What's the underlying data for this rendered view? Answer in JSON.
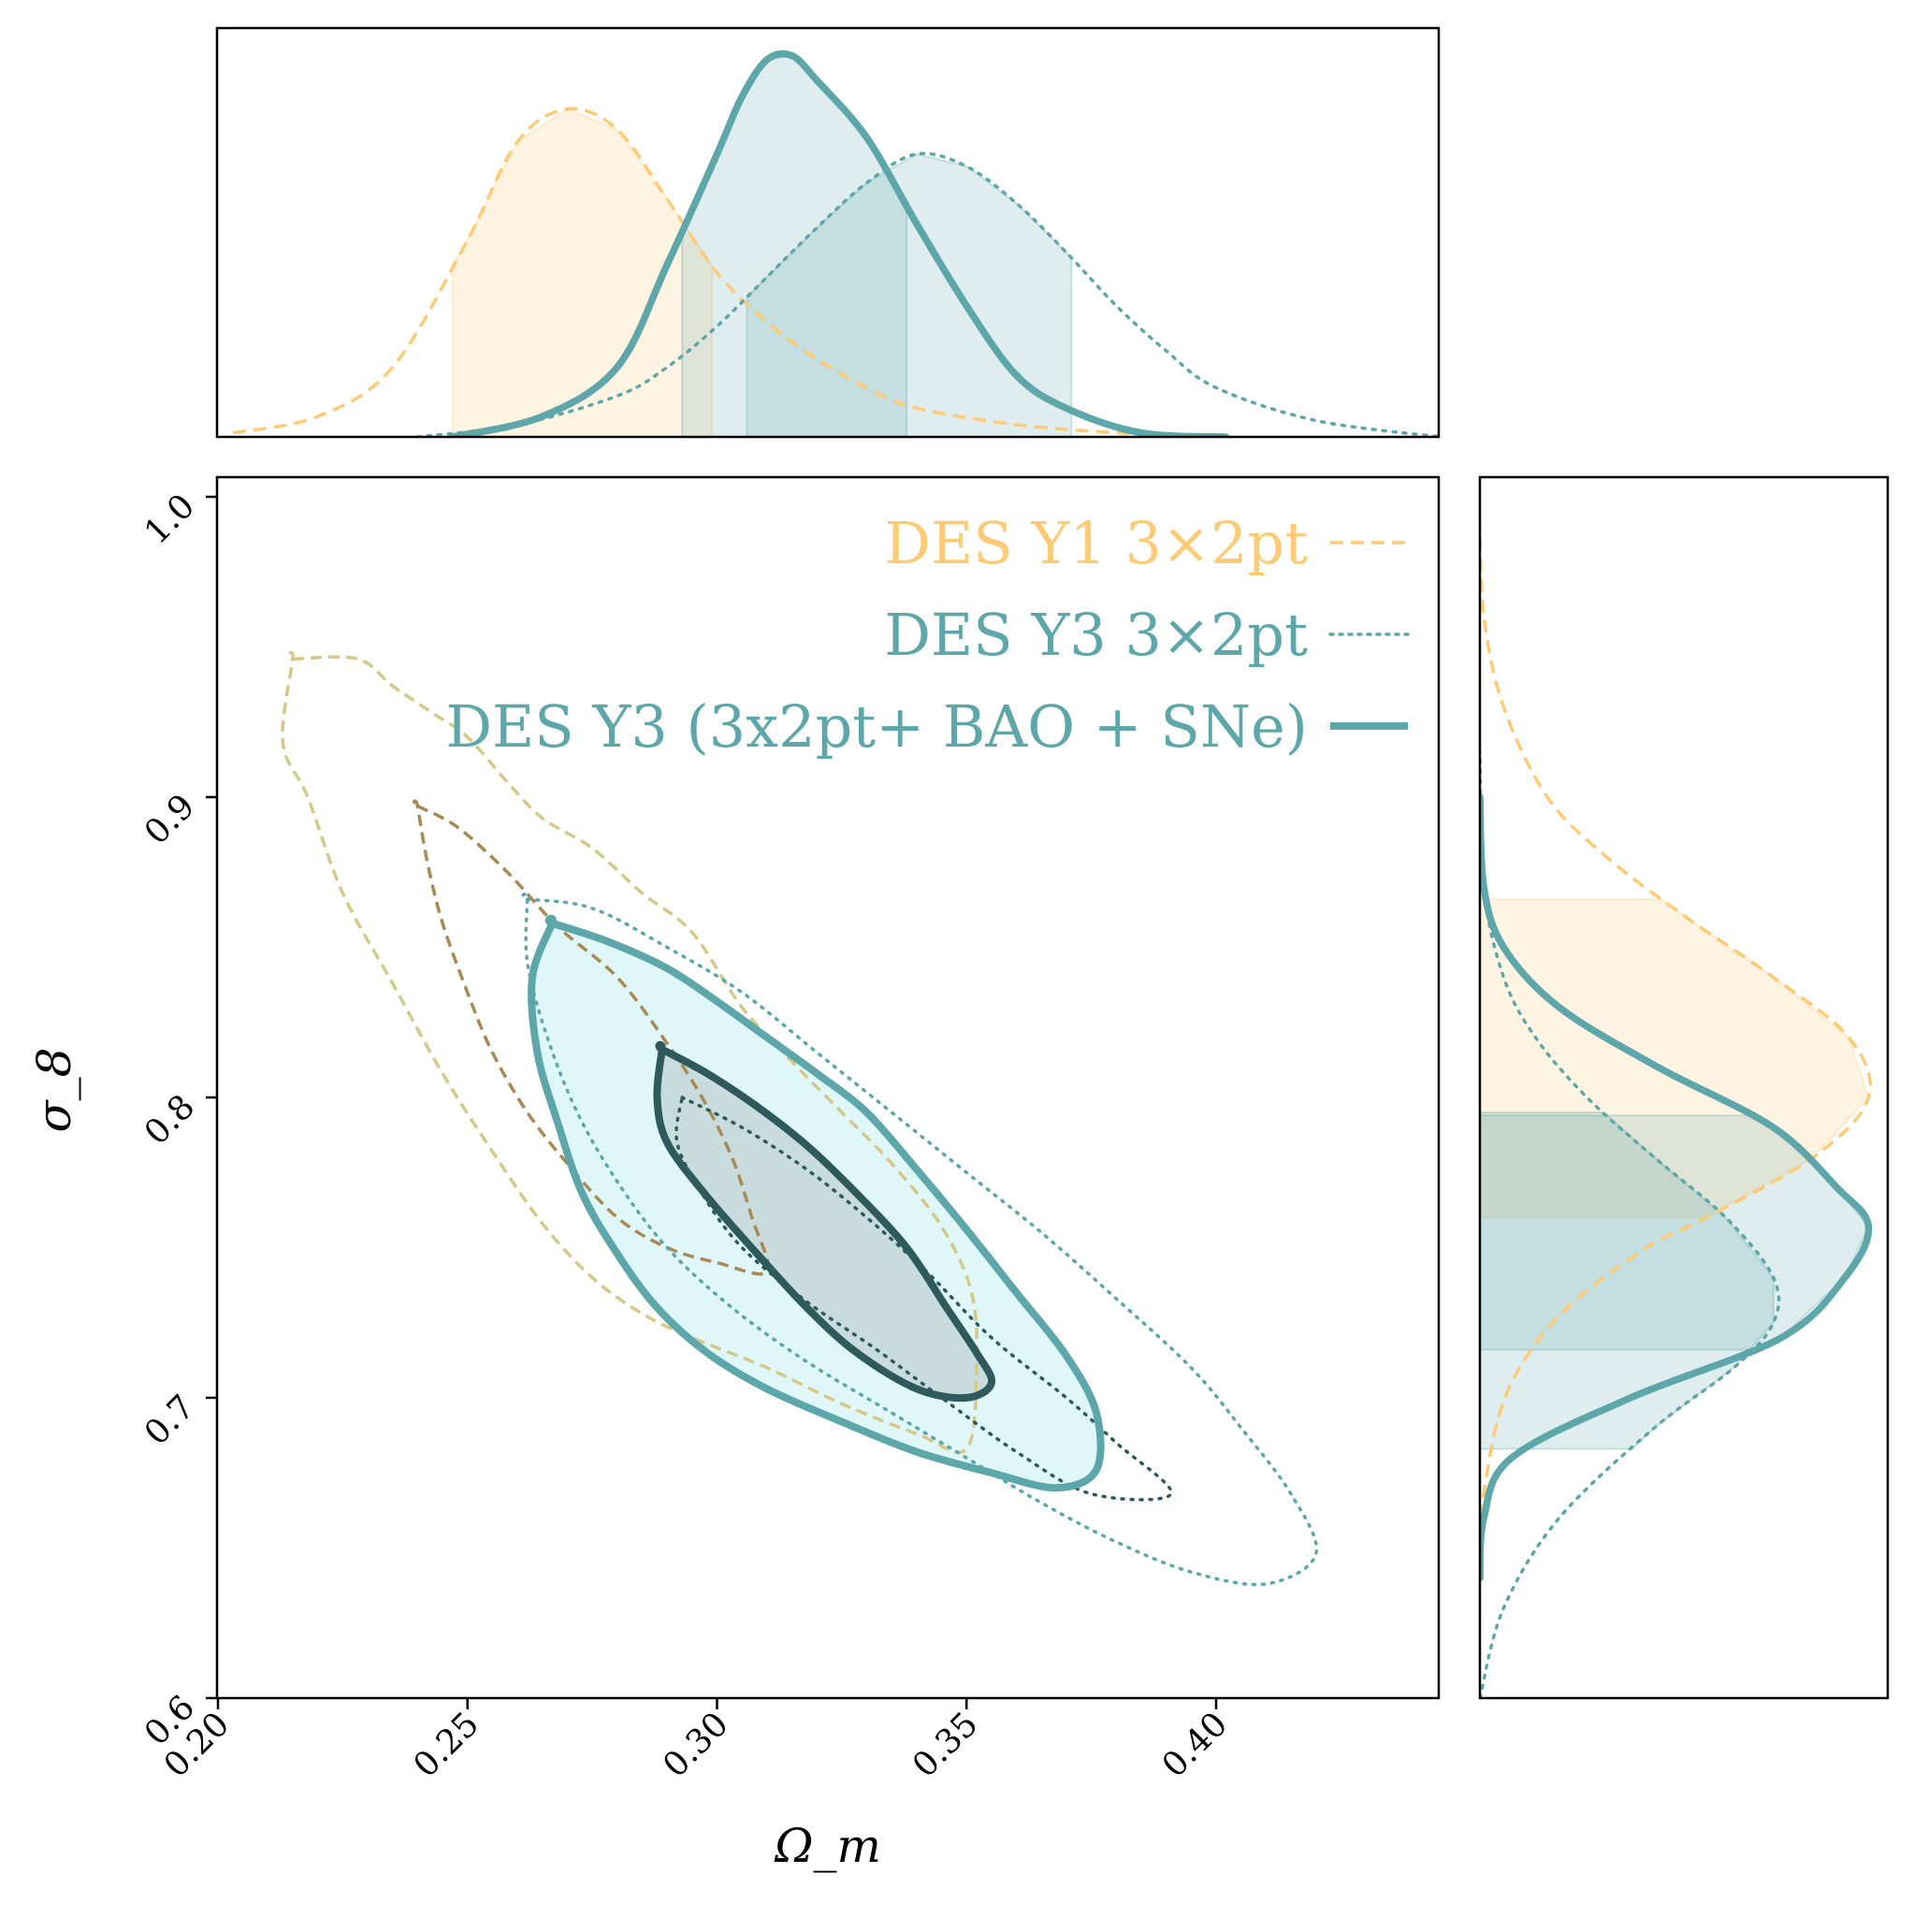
{
  "colors": {
    "y1": "#fdcb76",
    "y1_outer": "#d4c988",
    "y1_inner": "#a88a55",
    "y3": "#5da6aa",
    "y3_dark": "#2f5a5c",
    "combined_fill_outer": "#e0f7f9",
    "combined_fill_inner": "#c9dcdd"
  },
  "chart_data": {
    "type": "corner-plot (posterior contours + marginals)",
    "xlabel": "Ω_m",
    "ylabel": "σ_8",
    "xlim": [
      0.2,
      0.445
    ],
    "ylim": [
      0.6,
      1.007
    ],
    "x_ticks": [
      "0.20",
      "0.25",
      "0.30",
      "0.35",
      "0.40"
    ],
    "y_ticks": [
      "0.6",
      "0.7",
      "0.8",
      "0.9",
      "1.0"
    ],
    "legend_placement": "upper-right",
    "series": [
      {
        "name": "DES Y1 3×2pt",
        "line_style": "dashed",
        "color": "#fdcb76",
        "om_marginal": {
          "mode": 0.27,
          "interval68": [
            0.247,
            0.299
          ],
          "points": [
            [
              0.203,
              0.01
            ],
            [
              0.22,
              0.05
            ],
            [
              0.235,
              0.17
            ],
            [
              0.25,
              0.48
            ],
            [
              0.26,
              0.72
            ],
            [
              0.27,
              0.8
            ],
            [
              0.28,
              0.75
            ],
            [
              0.29,
              0.58
            ],
            [
              0.3,
              0.4
            ],
            [
              0.31,
              0.28
            ],
            [
              0.32,
              0.19
            ],
            [
              0.33,
              0.12
            ],
            [
              0.34,
              0.07
            ],
            [
              0.36,
              0.03
            ],
            [
              0.38,
              0.01
            ],
            [
              0.4,
              0.0
            ]
          ]
        },
        "s8_marginal": {
          "mode": 0.8,
          "interval68": [
            0.76,
            0.866
          ],
          "points": [
            [
              0.66,
              0.0
            ],
            [
              0.69,
              0.04
            ],
            [
              0.71,
              0.1
            ],
            [
              0.73,
              0.22
            ],
            [
              0.75,
              0.42
            ],
            [
              0.76,
              0.57
            ],
            [
              0.78,
              0.84
            ],
            [
              0.8,
              0.98
            ],
            [
              0.82,
              0.93
            ],
            [
              0.84,
              0.74
            ],
            [
              0.86,
              0.52
            ],
            [
              0.88,
              0.32
            ],
            [
              0.9,
              0.17
            ],
            [
              0.93,
              0.06
            ],
            [
              0.96,
              0.01
            ],
            [
              0.99,
              0.0
            ]
          ]
        },
        "contour95": [
          [
            0.215,
            0.946
          ],
          [
            0.228,
            0.946
          ],
          [
            0.235,
            0.937
          ],
          [
            0.243,
            0.928
          ],
          [
            0.25,
            0.92
          ],
          [
            0.258,
            0.905
          ],
          [
            0.265,
            0.893
          ],
          [
            0.275,
            0.883
          ],
          [
            0.285,
            0.868
          ],
          [
            0.295,
            0.855
          ],
          [
            0.305,
            0.83
          ],
          [
            0.315,
            0.812
          ],
          [
            0.325,
            0.795
          ],
          [
            0.335,
            0.778
          ],
          [
            0.345,
            0.757
          ],
          [
            0.351,
            0.735
          ],
          [
            0.352,
            0.71
          ],
          [
            0.35,
            0.683
          ],
          [
            0.34,
            0.688
          ],
          [
            0.325,
            0.698
          ],
          [
            0.31,
            0.71
          ],
          [
            0.295,
            0.72
          ],
          [
            0.285,
            0.728
          ],
          [
            0.275,
            0.74
          ],
          [
            0.265,
            0.758
          ],
          [
            0.255,
            0.782
          ],
          [
            0.245,
            0.808
          ],
          [
            0.235,
            0.838
          ],
          [
            0.225,
            0.868
          ],
          [
            0.218,
            0.9
          ],
          [
            0.213,
            0.918
          ],
          [
            0.215,
            0.946
          ]
        ],
        "contour68": [
          [
            0.24,
            0.897
          ],
          [
            0.248,
            0.89
          ],
          [
            0.258,
            0.875
          ],
          [
            0.268,
            0.857
          ],
          [
            0.28,
            0.84
          ],
          [
            0.29,
            0.818
          ],
          [
            0.297,
            0.8
          ],
          [
            0.303,
            0.78
          ],
          [
            0.307,
            0.76
          ],
          [
            0.31,
            0.742
          ],
          [
            0.3,
            0.745
          ],
          [
            0.29,
            0.75
          ],
          [
            0.28,
            0.76
          ],
          [
            0.27,
            0.778
          ],
          [
            0.262,
            0.795
          ],
          [
            0.255,
            0.815
          ],
          [
            0.25,
            0.835
          ],
          [
            0.245,
            0.858
          ],
          [
            0.242,
            0.878
          ],
          [
            0.24,
            0.897
          ]
        ]
      },
      {
        "name": "DES Y3 3×2pt",
        "line_style": "dotted",
        "color": "#5da6aa",
        "om_marginal": {
          "mode": 0.339,
          "interval68": [
            0.306,
            0.371
          ],
          "points": [
            [
              0.24,
              0.0
            ],
            [
              0.26,
              0.03
            ],
            [
              0.28,
              0.1
            ],
            [
              0.29,
              0.17
            ],
            [
              0.3,
              0.27
            ],
            [
              0.31,
              0.39
            ],
            [
              0.32,
              0.51
            ],
            [
              0.33,
              0.62
            ],
            [
              0.34,
              0.69
            ],
            [
              0.35,
              0.66
            ],
            [
              0.36,
              0.57
            ],
            [
              0.37,
              0.45
            ],
            [
              0.38,
              0.32
            ],
            [
              0.39,
              0.21
            ],
            [
              0.4,
              0.12
            ],
            [
              0.42,
              0.04
            ],
            [
              0.445,
              0.0
            ]
          ]
        },
        "s8_marginal": {
          "mode": 0.735,
          "interval68": [
            0.683,
            0.795
          ],
          "points": [
            [
              0.6,
              0.0
            ],
            [
              0.63,
              0.06
            ],
            [
              0.66,
              0.2
            ],
            [
              0.69,
              0.44
            ],
            [
              0.71,
              0.64
            ],
            [
              0.725,
              0.74
            ],
            [
              0.74,
              0.74
            ],
            [
              0.76,
              0.62
            ],
            [
              0.78,
              0.44
            ],
            [
              0.8,
              0.27
            ],
            [
              0.82,
              0.14
            ],
            [
              0.84,
              0.06
            ],
            [
              0.87,
              0.01
            ],
            [
              0.915,
              0.0
            ]
          ]
        },
        "contour95": [
          [
            0.262,
            0.866
          ],
          [
            0.275,
            0.863
          ],
          [
            0.29,
            0.85
          ],
          [
            0.305,
            0.835
          ],
          [
            0.32,
            0.815
          ],
          [
            0.335,
            0.795
          ],
          [
            0.35,
            0.775
          ],
          [
            0.365,
            0.755
          ],
          [
            0.38,
            0.733
          ],
          [
            0.395,
            0.71
          ],
          [
            0.405,
            0.69
          ],
          [
            0.415,
            0.668
          ],
          [
            0.42,
            0.648
          ],
          [
            0.41,
            0.638
          ],
          [
            0.395,
            0.642
          ],
          [
            0.38,
            0.652
          ],
          [
            0.365,
            0.665
          ],
          [
            0.35,
            0.68
          ],
          [
            0.335,
            0.695
          ],
          [
            0.318,
            0.712
          ],
          [
            0.303,
            0.73
          ],
          [
            0.29,
            0.75
          ],
          [
            0.28,
            0.772
          ],
          [
            0.272,
            0.795
          ],
          [
            0.266,
            0.82
          ],
          [
            0.262,
            0.845
          ],
          [
            0.262,
            0.866
          ]
        ],
        "contour68": [
          [
            0.293,
            0.8
          ],
          [
            0.305,
            0.79
          ],
          [
            0.318,
            0.776
          ],
          [
            0.33,
            0.76
          ],
          [
            0.342,
            0.742
          ],
          [
            0.355,
            0.72
          ],
          [
            0.37,
            0.7
          ],
          [
            0.38,
            0.685
          ],
          [
            0.391,
            0.668
          ],
          [
            0.375,
            0.668
          ],
          [
            0.36,
            0.682
          ],
          [
            0.345,
            0.7
          ],
          [
            0.332,
            0.716
          ],
          [
            0.318,
            0.732
          ],
          [
            0.305,
            0.75
          ],
          [
            0.297,
            0.768
          ],
          [
            0.292,
            0.785
          ],
          [
            0.293,
            0.8
          ]
        ]
      },
      {
        "name": "DES Y3 (3x2pt+ BAO + SNe)",
        "line_style": "solid",
        "color": "#5da6aa",
        "om_marginal": {
          "mode": 0.313,
          "interval68": [
            0.293,
            0.338
          ],
          "points": [
            [
              0.247,
              0.0
            ],
            [
              0.265,
              0.05
            ],
            [
              0.28,
              0.17
            ],
            [
              0.29,
              0.42
            ],
            [
              0.3,
              0.69
            ],
            [
              0.305,
              0.83
            ],
            [
              0.31,
              0.92
            ],
            [
              0.315,
              0.93
            ],
            [
              0.32,
              0.87
            ],
            [
              0.33,
              0.73
            ],
            [
              0.34,
              0.52
            ],
            [
              0.35,
              0.32
            ],
            [
              0.36,
              0.15
            ],
            [
              0.37,
              0.07
            ],
            [
              0.385,
              0.01
            ],
            [
              0.402,
              0.0
            ]
          ]
        },
        "s8_marginal": {
          "mode": 0.757,
          "interval68": [
            0.716,
            0.794
          ],
          "points": [
            [
              0.64,
              0.0
            ],
            [
              0.66,
              0.01
            ],
            [
              0.68,
              0.08
            ],
            [
              0.7,
              0.38
            ],
            [
              0.72,
              0.76
            ],
            [
              0.74,
              0.92
            ],
            [
              0.757,
              0.98
            ],
            [
              0.77,
              0.9
            ],
            [
              0.79,
              0.74
            ],
            [
              0.81,
              0.45
            ],
            [
              0.83,
              0.2
            ],
            [
              0.85,
              0.06
            ],
            [
              0.87,
              0.01
            ],
            [
              0.9,
              0.0
            ]
          ]
        },
        "contour95": [
          [
            0.267,
            0.858
          ],
          [
            0.278,
            0.852
          ],
          [
            0.29,
            0.843
          ],
          [
            0.3,
            0.832
          ],
          [
            0.31,
            0.82
          ],
          [
            0.32,
            0.808
          ],
          [
            0.33,
            0.795
          ],
          [
            0.34,
            0.776
          ],
          [
            0.35,
            0.756
          ],
          [
            0.36,
            0.735
          ],
          [
            0.37,
            0.714
          ],
          [
            0.376,
            0.695
          ],
          [
            0.376,
            0.676
          ],
          [
            0.368,
            0.67
          ],
          [
            0.355,
            0.675
          ],
          [
            0.34,
            0.682
          ],
          [
            0.325,
            0.692
          ],
          [
            0.31,
            0.703
          ],
          [
            0.298,
            0.715
          ],
          [
            0.288,
            0.73
          ],
          [
            0.28,
            0.748
          ],
          [
            0.273,
            0.768
          ],
          [
            0.268,
            0.792
          ],
          [
            0.264,
            0.815
          ],
          [
            0.263,
            0.84
          ],
          [
            0.267,
            0.858
          ]
        ],
        "contour68": [
          [
            0.289,
            0.816
          ],
          [
            0.298,
            0.808
          ],
          [
            0.308,
            0.797
          ],
          [
            0.318,
            0.784
          ],
          [
            0.328,
            0.768
          ],
          [
            0.338,
            0.75
          ],
          [
            0.346,
            0.73
          ],
          [
            0.352,
            0.715
          ],
          [
            0.355,
            0.705
          ],
          [
            0.35,
            0.7
          ],
          [
            0.34,
            0.703
          ],
          [
            0.328,
            0.715
          ],
          [
            0.318,
            0.73
          ],
          [
            0.308,
            0.748
          ],
          [
            0.298,
            0.767
          ],
          [
            0.29,
            0.785
          ],
          [
            0.288,
            0.8
          ],
          [
            0.289,
            0.816
          ]
        ]
      }
    ]
  }
}
